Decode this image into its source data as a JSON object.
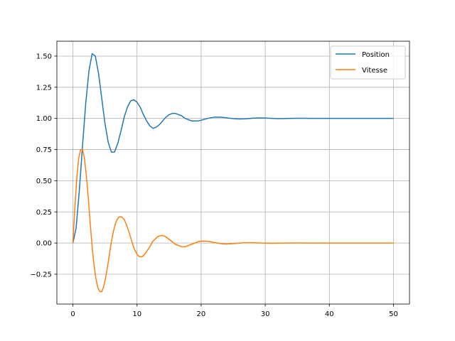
{
  "chart_data": {
    "type": "line",
    "title": "",
    "xlabel": "",
    "ylabel": "",
    "xlim": [
      -2.5,
      52.5
    ],
    "ylim": [
      -0.4895,
      1.6195
    ],
    "grid": true,
    "legend_position": "top-right",
    "x_ticks": [
      0,
      10,
      20,
      30,
      40,
      50
    ],
    "x_tick_labels": [
      "0",
      "10",
      "20",
      "30",
      "40",
      "50"
    ],
    "y_ticks": [
      -0.25,
      0,
      0.25,
      0.5,
      0.75,
      1.0,
      1.25,
      1.5
    ],
    "y_tick_labels": [
      "−0.25",
      "0.00",
      "0.25",
      "0.50",
      "0.75",
      "1.00",
      "1.25",
      "1.50"
    ],
    "series": [
      {
        "name": "Position",
        "color": "#1f77b4",
        "points": [
          [
            0,
            0
          ],
          [
            0.5,
            0.12
          ],
          [
            1,
            0.42
          ],
          [
            1.5,
            0.78
          ],
          [
            2,
            1.12
          ],
          [
            2.5,
            1.38
          ],
          [
            3,
            1.52
          ],
          [
            3.5,
            1.5
          ],
          [
            4,
            1.36
          ],
          [
            4.5,
            1.16
          ],
          [
            5,
            0.96
          ],
          [
            5.5,
            0.81
          ],
          [
            6,
            0.73
          ],
          [
            6.5,
            0.73
          ],
          [
            7,
            0.8
          ],
          [
            7.5,
            0.9
          ],
          [
            8,
            1.01
          ],
          [
            8.5,
            1.09
          ],
          [
            9,
            1.14
          ],
          [
            9.5,
            1.15
          ],
          [
            10,
            1.13
          ],
          [
            10.5,
            1.09
          ],
          [
            11,
            1.03
          ],
          [
            11.5,
            0.98
          ],
          [
            12,
            0.94
          ],
          [
            12.5,
            0.92
          ],
          [
            13,
            0.93
          ],
          [
            13.5,
            0.95
          ],
          [
            14,
            0.98
          ],
          [
            14.5,
            1.01
          ],
          [
            15,
            1.03
          ],
          [
            15.5,
            1.04
          ],
          [
            16,
            1.04
          ],
          [
            16.5,
            1.03
          ],
          [
            17,
            1.02
          ],
          [
            17.5,
            1.0
          ],
          [
            18,
            0.99
          ],
          [
            18.5,
            0.98
          ],
          [
            19,
            0.98
          ],
          [
            19.5,
            0.98
          ],
          [
            20,
            0.985
          ],
          [
            21,
            1.0
          ],
          [
            22,
            1.01
          ],
          [
            23,
            1.01
          ],
          [
            24,
            1.005
          ],
          [
            25,
            0.998
          ],
          [
            26,
            0.995
          ],
          [
            27,
            0.997
          ],
          [
            28,
            1.002
          ],
          [
            29,
            1.004
          ],
          [
            30,
            1.003
          ],
          [
            31,
            1.0
          ],
          [
            32,
            0.998
          ],
          [
            33,
            0.999
          ],
          [
            34,
            1.0
          ],
          [
            35,
            1.001
          ],
          [
            36,
            1.001
          ],
          [
            37,
            1.0
          ],
          [
            38,
            1.0
          ],
          [
            40,
            1.0
          ],
          [
            42,
            1.0
          ],
          [
            45,
            1.0
          ],
          [
            48,
            1.0
          ],
          [
            50,
            1.0
          ]
        ]
      },
      {
        "name": "Vitesse",
        "color": "#ff7f0e",
        "points": [
          [
            0,
            0
          ],
          [
            0.3,
            0.28
          ],
          [
            0.6,
            0.52
          ],
          [
            0.9,
            0.68
          ],
          [
            1.2,
            0.75
          ],
          [
            1.5,
            0.75
          ],
          [
            1.8,
            0.68
          ],
          [
            2.1,
            0.54
          ],
          [
            2.4,
            0.36
          ],
          [
            2.7,
            0.16
          ],
          [
            3.0,
            -0.03
          ],
          [
            3.3,
            -0.18
          ],
          [
            3.6,
            -0.29
          ],
          [
            3.9,
            -0.36
          ],
          [
            4.2,
            -0.39
          ],
          [
            4.5,
            -0.39
          ],
          [
            4.8,
            -0.35
          ],
          [
            5.1,
            -0.28
          ],
          [
            5.4,
            -0.19
          ],
          [
            5.7,
            -0.09
          ],
          [
            6.0,
            0.01
          ],
          [
            6.3,
            0.09
          ],
          [
            6.6,
            0.15
          ],
          [
            6.9,
            0.19
          ],
          [
            7.2,
            0.21
          ],
          [
            7.6,
            0.21
          ],
          [
            8.0,
            0.19
          ],
          [
            8.4,
            0.14
          ],
          [
            8.8,
            0.08
          ],
          [
            9.2,
            0.01
          ],
          [
            9.6,
            -0.05
          ],
          [
            10.0,
            -0.09
          ],
          [
            10.4,
            -0.11
          ],
          [
            10.8,
            -0.11
          ],
          [
            11.2,
            -0.09
          ],
          [
            11.6,
            -0.06
          ],
          [
            12.0,
            -0.03
          ],
          [
            12.4,
            0.01
          ],
          [
            12.8,
            0.03
          ],
          [
            13.2,
            0.05
          ],
          [
            13.6,
            0.06
          ],
          [
            14.0,
            0.06
          ],
          [
            14.5,
            0.05
          ],
          [
            15.0,
            0.03
          ],
          [
            15.5,
            0.01
          ],
          [
            16.0,
            -0.01
          ],
          [
            16.5,
            -0.02
          ],
          [
            17.0,
            -0.03
          ],
          [
            17.5,
            -0.03
          ],
          [
            18.0,
            -0.02
          ],
          [
            18.5,
            -0.01
          ],
          [
            19.0,
            0.0
          ],
          [
            19.5,
            0.01
          ],
          [
            20.0,
            0.015
          ],
          [
            20.5,
            0.016
          ],
          [
            21.0,
            0.014
          ],
          [
            21.5,
            0.01
          ],
          [
            22.0,
            0.005
          ],
          [
            22.5,
            0.0
          ],
          [
            23.0,
            -0.004
          ],
          [
            23.5,
            -0.007
          ],
          [
            24.0,
            -0.008
          ],
          [
            25.0,
            -0.005
          ],
          [
            26.0,
            0.0
          ],
          [
            27.0,
            0.003
          ],
          [
            28.0,
            0.003
          ],
          [
            29.0,
            0.001
          ],
          [
            30.0,
            -0.001
          ],
          [
            31.0,
            -0.002
          ],
          [
            32.0,
            -0.001
          ],
          [
            33.0,
            0.0
          ],
          [
            35.0,
            0.001
          ],
          [
            37.0,
            0.0
          ],
          [
            40.0,
            0.0
          ],
          [
            45.0,
            0.0
          ],
          [
            50.0,
            0.0
          ]
        ]
      }
    ]
  }
}
